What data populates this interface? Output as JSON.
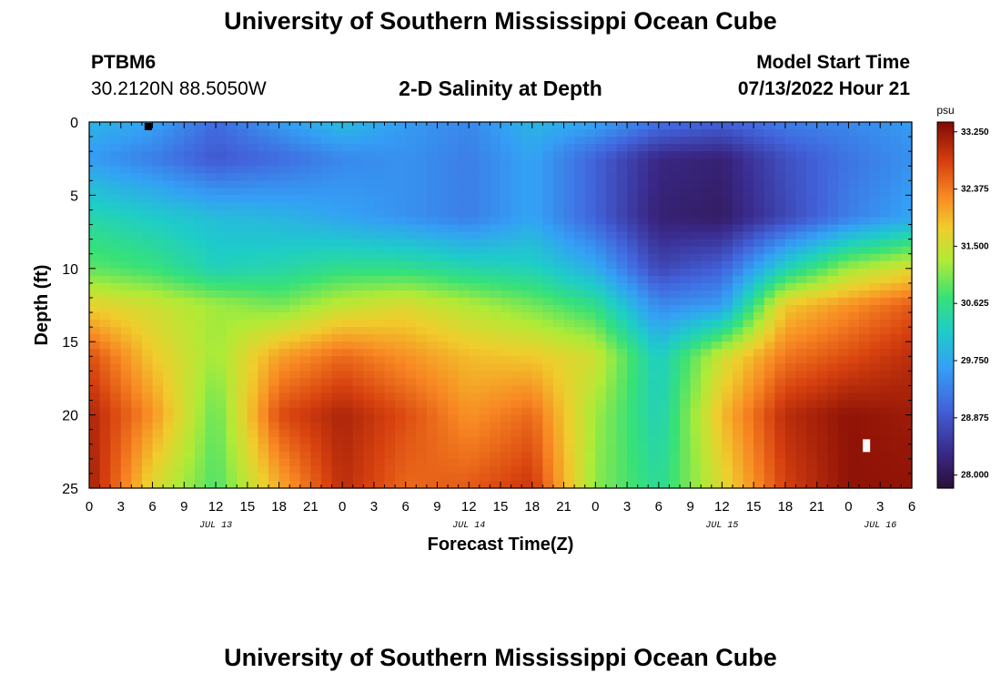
{
  "header": {
    "title": "University of Southern Mississippi Ocean Cube",
    "station": "PTBM6",
    "coords": "30.2120N  88.5050W",
    "subtitle": "2-D Salinity at Depth",
    "model_start_label": "Model Start Time",
    "model_start_value": "07/13/2022 Hour 21"
  },
  "footer": {
    "title": "University of Southern Mississippi Ocean Cube"
  },
  "chart_data": {
    "type": "heatmap",
    "title": "2-D Salinity at Depth",
    "xlabel": "Forecast Time(Z)",
    "ylabel": "Depth (ft)",
    "x_range_hours": [
      0,
      78
    ],
    "x_ticks": [
      "0",
      "3",
      "6",
      "9",
      "12",
      "15",
      "18",
      "21",
      "0",
      "3",
      "6",
      "9",
      "12",
      "15",
      "18",
      "21",
      "0",
      "3",
      "6",
      "9",
      "12",
      "15",
      "18",
      "21",
      "0",
      "3",
      "6"
    ],
    "date_labels": [
      {
        "label": "JUL 13",
        "hour": 12
      },
      {
        "label": "JUL 14",
        "hour": 36
      },
      {
        "label": "JUL 15",
        "hour": 60
      },
      {
        "label": "JUL 16",
        "hour": 75
      }
    ],
    "y_ticks": [
      0,
      5,
      10,
      15,
      20,
      25
    ],
    "y_range_ft": [
      0,
      25
    ],
    "y_inverted": true,
    "colorbar": {
      "unit": "psu",
      "min": 27.8,
      "max": 33.4,
      "ticks": [
        "33.250",
        "32.375",
        "31.500",
        "30.625",
        "29.750",
        "28.875",
        "28.000"
      ]
    },
    "time_hours": [
      0,
      6,
      12,
      18,
      24,
      30,
      36,
      42,
      48,
      54,
      60,
      66,
      72,
      78
    ],
    "depths_ft": [
      0,
      5,
      10,
      15,
      20,
      25
    ],
    "salinity_psu": [
      [
        29.9,
        29.7,
        29.1,
        29.6,
        30.0,
        29.6,
        29.4,
        29.9,
        29.7,
        29.2,
        29.0,
        29.3,
        29.4,
        29.6
      ],
      [
        29.6,
        29.3,
        28.9,
        29.1,
        29.4,
        29.5,
        29.3,
        29.7,
        29.0,
        28.3,
        28.2,
        28.8,
        29.2,
        29.5
      ],
      [
        30.4,
        30.2,
        30.0,
        29.9,
        29.7,
        29.5,
        29.3,
        29.7,
        29.0,
        28.2,
        28.1,
        28.7,
        29.3,
        29.7
      ],
      [
        30.9,
        30.7,
        30.3,
        30.4,
        30.6,
        30.6,
        30.4,
        30.3,
        29.8,
        28.7,
        29.0,
        30.3,
        31.2,
        31.6
      ],
      [
        31.7,
        31.5,
        31.2,
        31.0,
        31.4,
        31.6,
        31.3,
        31.0,
        30.6,
        29.4,
        29.6,
        31.8,
        32.2,
        32.6
      ],
      [
        32.7,
        31.8,
        31.2,
        32.1,
        32.5,
        32.2,
        31.9,
        31.8,
        31.5,
        30.2,
        31.5,
        32.4,
        32.7,
        33.0
      ],
      [
        33.1,
        32.2,
        30.9,
        32.7,
        33.1,
        32.7,
        32.2,
        32.5,
        31.2,
        30.3,
        31.9,
        33.0,
        33.3,
        33.2
      ],
      [
        33.2,
        31.6,
        30.8,
        32.0,
        33.0,
        32.5,
        32.6,
        32.9,
        31.1,
        30.5,
        31.6,
        32.8,
        33.3,
        33.3
      ]
    ],
    "salinity_depths_ft": [
      0,
      2.5,
      6.5,
      10,
      12.5,
      16,
      20,
      25
    ]
  }
}
